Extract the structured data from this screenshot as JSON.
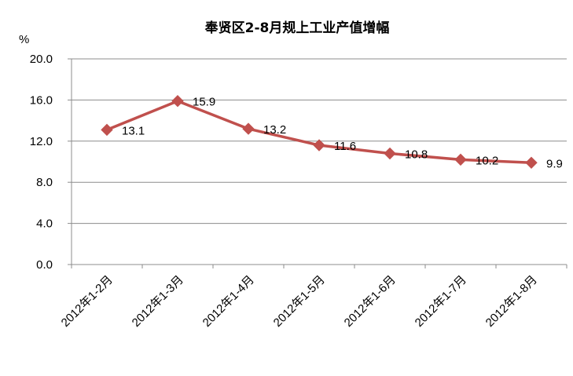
{
  "chart_data": {
    "type": "line",
    "title": "奉贤区2-8月规上工业产值增幅",
    "ylabel": "%",
    "xlabel": "",
    "categories": [
      "2012年1-2月",
      "2012年1-3月",
      "2012年1-4月",
      "2012年1-5月",
      "2012年1-6月",
      "2012年1-7月",
      "2012年1-8月"
    ],
    "series": [
      {
        "values": [
          13.1,
          15.9,
          13.2,
          11.6,
          10.8,
          10.2,
          9.9
        ]
      }
    ],
    "data_labels": [
      "13.1",
      "15.9",
      "13.2",
      "11.6",
      "10.8",
      "10.2",
      "9.9"
    ],
    "ylim": [
      0,
      20
    ],
    "yticks": [
      "0.0",
      "4.0",
      "8.0",
      "12.0",
      "16.0",
      "20.0"
    ],
    "grid": true,
    "legend": "none",
    "colors": {
      "series": "#c0504d",
      "grid": "#8c8c8c"
    }
  }
}
